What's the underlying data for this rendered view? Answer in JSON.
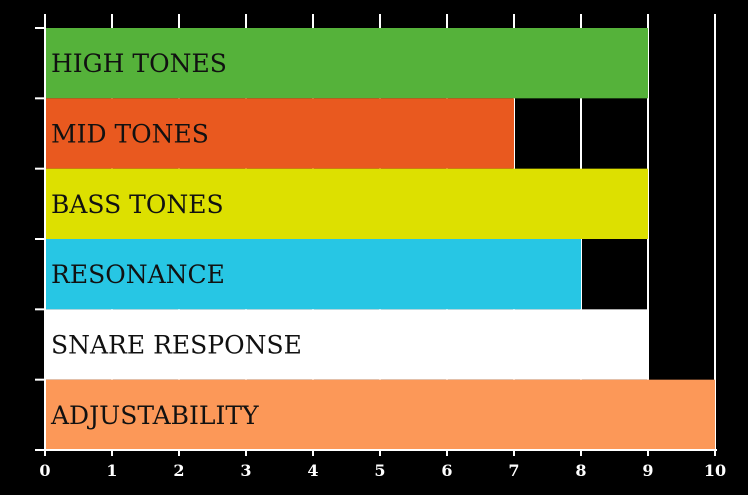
{
  "chart_data": {
    "type": "bar",
    "orientation": "horizontal",
    "categories": [
      "HIGH TONES",
      "MID TONES",
      "BASS TONES",
      "RESONANCE",
      "SNARE RESPONSE",
      "ADJUSTABILITY"
    ],
    "values": [
      9,
      7,
      9,
      8,
      9,
      10
    ],
    "colors": [
      "#55b23a",
      "#e9591f",
      "#dde000",
      "#27c6e4",
      "#ffffff",
      "#fc9858"
    ],
    "xlim": [
      0,
      10
    ],
    "xticks": [
      "0",
      "1",
      "2",
      "3",
      "4",
      "5",
      "6",
      "7",
      "8",
      "9",
      "10"
    ],
    "title": "",
    "xlabel": "",
    "ylabel": "",
    "grid": "vertical",
    "background": "#000000",
    "axis_color": "#ffffff"
  }
}
